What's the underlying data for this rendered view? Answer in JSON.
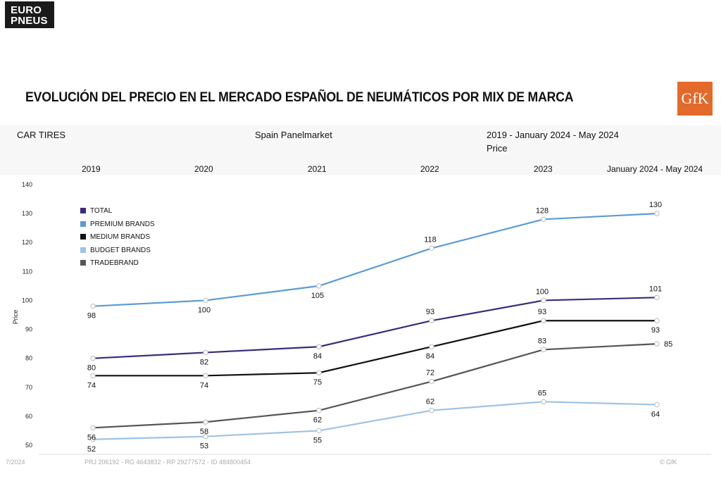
{
  "brand_logo": {
    "line1": "EURO",
    "line2": "PNEUS"
  },
  "title": "EVOLUCIÓN DEL PRECIO EN EL MERCADO ESPAÑOL DE NEUMÁTICOS POR MIX DE MARCA",
  "gfk_logo": "GfK",
  "header": {
    "left": "CAR TIRES",
    "center": "Spain Panelmarket",
    "right_line1": "2019 - January 2024 - May 2024",
    "right_line2": "Price"
  },
  "footer": {
    "left": "7/2024",
    "center": "PRJ 206192 - RG 4643832 - RP 29277572 - ID 484800454",
    "right": "© GfK"
  },
  "chart_data": {
    "type": "line",
    "categories": [
      "2019",
      "2020",
      "2021",
      "2022",
      "2023",
      "January 2024 - May 2024"
    ],
    "ylabel": "Price",
    "ylim": [
      50,
      140
    ],
    "yticks": [
      50,
      60,
      70,
      80,
      90,
      100,
      110,
      120,
      130,
      140
    ],
    "grid": false,
    "legend": "top-left",
    "series": [
      {
        "name": "TOTAL",
        "color": "#3d2a7a",
        "values": [
          80,
          82,
          84,
          93,
          100,
          101
        ]
      },
      {
        "name": "PREMIUM BRANDS",
        "color": "#5b9bd5",
        "values": [
          98,
          100,
          105,
          118,
          128,
          130
        ]
      },
      {
        "name": "MEDIUM BRANDS",
        "color": "#111111",
        "values": [
          74,
          74,
          75,
          84,
          93,
          93
        ]
      },
      {
        "name": "BUDGET BRANDS",
        "color": "#9dc3e6",
        "values": [
          52,
          53,
          55,
          62,
          65,
          64
        ]
      },
      {
        "name": "TRADEBRAND",
        "color": "#555555",
        "values": [
          56,
          58,
          62,
          72,
          83,
          85
        ]
      }
    ]
  }
}
